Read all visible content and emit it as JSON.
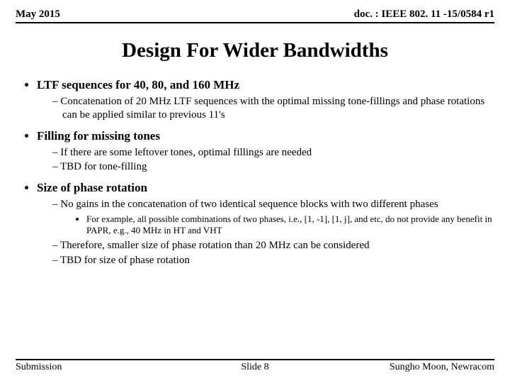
{
  "header": {
    "date": "May 2015",
    "docref": "doc. : IEEE 802. 11 -15/0584 r1"
  },
  "title": "Design For Wider Bandwidths",
  "bullets": [
    {
      "text": "LTF sequences for 40, 80, and 160 MHz",
      "sub": [
        "Concatenation of 20 MHz LTF sequences with the optimal missing tone-fillings and phase rotations can be applied similar to previous 11's"
      ]
    },
    {
      "text": "Filling for missing tones",
      "sub": [
        "If there are some leftover tones, optimal fillings are needed",
        "TBD for tone-filling"
      ]
    },
    {
      "text": "Size of phase rotation",
      "sub": [
        "No gains in the concatenation of two identical sequence blocks with two different phases"
      ],
      "subsub": [
        "For example, all possible combinations of two phases, i.e., [1, -1], [1, j], and etc, do not provide any benefit in PAPR, e.g., 40 MHz in HT and VHT"
      ],
      "sub2": [
        "Therefore, smaller size of phase rotation than 20 MHz can be considered",
        "TBD for size of phase rotation"
      ]
    }
  ],
  "footer": {
    "left": "Submission",
    "center": "Slide 8",
    "right": "Sungho Moon, Newracom"
  }
}
